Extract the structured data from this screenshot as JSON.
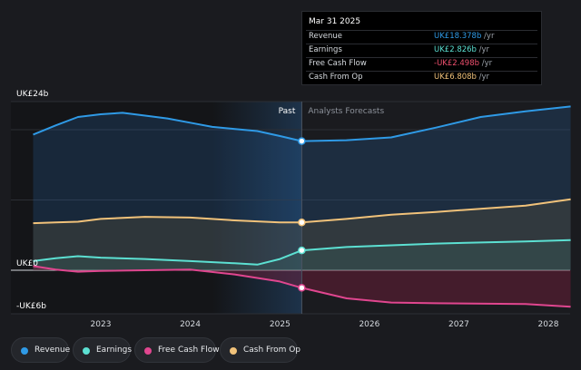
{
  "chart_data": {
    "type": "area",
    "ylim": [
      -6,
      24
    ],
    "y_ticks": [
      {
        "value": 24,
        "label": "UK£24b"
      },
      {
        "value": 0,
        "label": "UK£0"
      },
      {
        "value": -6,
        "label": "-UK£6b"
      }
    ],
    "x_ticks": [
      "2023",
      "2024",
      "2025",
      "2026",
      "2027",
      "2028"
    ],
    "divider_date": "2025-03-31",
    "past_label": "Past",
    "forecast_label": "Analysts Forecasts",
    "series": [
      {
        "name": "Revenue",
        "color": "#2f9ae6",
        "points": [
          [
            "2022-03-31",
            19.3
          ],
          [
            "2022-07-01",
            20.6
          ],
          [
            "2022-09-30",
            21.8
          ],
          [
            "2023-01-01",
            22.2
          ],
          [
            "2023-03-31",
            22.4
          ],
          [
            "2023-07-01",
            22.0
          ],
          [
            "2023-09-30",
            21.6
          ],
          [
            "2024-01-01",
            21.0
          ],
          [
            "2024-03-31",
            20.4
          ],
          [
            "2024-07-01",
            20.1
          ],
          [
            "2024-09-30",
            19.8
          ],
          [
            "2025-01-01",
            19.1
          ],
          [
            "2025-03-31",
            18.378
          ],
          [
            "2025-09-30",
            18.5
          ],
          [
            "2026-03-31",
            18.9
          ],
          [
            "2026-09-30",
            20.3
          ],
          [
            "2027-03-31",
            21.8
          ],
          [
            "2027-09-30",
            22.6
          ],
          [
            "2028-04-01",
            23.3
          ]
        ]
      },
      {
        "name": "Earnings",
        "color": "#5ce0d2",
        "points": [
          [
            "2022-03-31",
            1.3
          ],
          [
            "2022-07-01",
            1.7
          ],
          [
            "2022-09-30",
            2.0
          ],
          [
            "2023-01-01",
            1.8
          ],
          [
            "2023-06-30",
            1.6
          ],
          [
            "2024-01-01",
            1.3
          ],
          [
            "2024-06-30",
            1.0
          ],
          [
            "2024-10-01",
            0.8
          ],
          [
            "2025-01-01",
            1.6
          ],
          [
            "2025-03-31",
            2.826
          ],
          [
            "2025-09-30",
            3.3
          ],
          [
            "2026-09-30",
            3.8
          ],
          [
            "2027-09-30",
            4.1
          ],
          [
            "2028-04-01",
            4.3
          ]
        ]
      },
      {
        "name": "Free Cash Flow",
        "color": "#e0468f",
        "points": [
          [
            "2022-03-31",
            0.6
          ],
          [
            "2022-07-01",
            0.1
          ],
          [
            "2022-09-30",
            -0.2
          ],
          [
            "2023-01-01",
            -0.1
          ],
          [
            "2023-06-30",
            0.0
          ],
          [
            "2024-01-01",
            0.1
          ],
          [
            "2024-06-30",
            -0.6
          ],
          [
            "2024-12-31",
            -1.6
          ],
          [
            "2025-03-31",
            -2.498
          ],
          [
            "2025-09-30",
            -4.0
          ],
          [
            "2026-03-31",
            -4.6
          ],
          [
            "2026-09-30",
            -4.7
          ],
          [
            "2027-09-30",
            -4.8
          ],
          [
            "2028-04-01",
            -5.2
          ]
        ]
      },
      {
        "name": "Cash From Op",
        "color": "#f1c27a",
        "points": [
          [
            "2022-03-31",
            6.7
          ],
          [
            "2022-07-01",
            6.8
          ],
          [
            "2022-09-30",
            6.9
          ],
          [
            "2023-01-01",
            7.3
          ],
          [
            "2023-06-30",
            7.6
          ],
          [
            "2024-01-01",
            7.5
          ],
          [
            "2024-06-30",
            7.1
          ],
          [
            "2024-12-31",
            6.8
          ],
          [
            "2025-03-31",
            6.808
          ],
          [
            "2025-09-30",
            7.3
          ],
          [
            "2026-03-31",
            7.9
          ],
          [
            "2026-09-30",
            8.3
          ],
          [
            "2027-09-30",
            9.2
          ],
          [
            "2028-04-01",
            10.1
          ]
        ]
      }
    ]
  },
  "tooltip": {
    "date": "Mar 31 2025",
    "rows": [
      {
        "label": "Revenue",
        "value": "UK£18.378b",
        "unit": "/yr",
        "color": "#2f9ae6"
      },
      {
        "label": "Earnings",
        "value": "UK£2.826b",
        "unit": "/yr",
        "color": "#5ce0d2"
      },
      {
        "label": "Free Cash Flow",
        "value": "-UK£2.498b",
        "unit": "/yr",
        "color": "#f0506e"
      },
      {
        "label": "Cash From Op",
        "value": "UK£6.808b",
        "unit": "/yr",
        "color": "#f1c27a"
      }
    ]
  },
  "legend": [
    {
      "label": "Revenue",
      "color": "#2f9ae6"
    },
    {
      "label": "Earnings",
      "color": "#5ce0d2"
    },
    {
      "label": "Free Cash Flow",
      "color": "#e0468f"
    },
    {
      "label": "Cash From Op",
      "color": "#f1c27a"
    }
  ]
}
